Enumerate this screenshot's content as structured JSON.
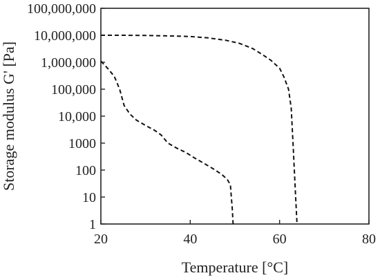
{
  "chart_data": {
    "type": "line",
    "title": "",
    "xlabel": "Temperature [°C]",
    "ylabel": "Storage modulus G' [Pa]",
    "xlim": [
      20,
      80
    ],
    "ylim": [
      1,
      100000000
    ],
    "y_scale": "log",
    "grid": false,
    "legend": "none",
    "x_ticks": [
      20,
      40,
      60,
      80
    ],
    "x_tick_labels": [
      "20",
      "40",
      "60",
      "80"
    ],
    "y_ticks": [
      1,
      10,
      100,
      1000,
      10000,
      100000,
      1000000,
      10000000,
      100000000
    ],
    "y_tick_labels": [
      "1",
      "10",
      "100",
      "1000",
      "10,000",
      "100,000",
      "1,000,000",
      "10,000,000",
      "100,000,000"
    ],
    "series": [
      {
        "line_style": "dashed",
        "color": "#111111",
        "points": [
          [
            20.0,
            1100000
          ],
          [
            21.5,
            600000
          ],
          [
            23.0,
            300000
          ],
          [
            24.2,
            100000
          ],
          [
            25.2,
            25000
          ],
          [
            26.5,
            12000
          ],
          [
            28.0,
            7000
          ],
          [
            30.0,
            4500
          ],
          [
            32.0,
            3000
          ],
          [
            33.5,
            2000
          ],
          [
            35.0,
            1000
          ],
          [
            37.0,
            650
          ],
          [
            39.0,
            450
          ],
          [
            41.0,
            280
          ],
          [
            43.0,
            180
          ],
          [
            45.0,
            115
          ],
          [
            47.0,
            70
          ],
          [
            48.3,
            45
          ],
          [
            49.0,
            28
          ],
          [
            49.2,
            10
          ],
          [
            49.4,
            4
          ],
          [
            49.6,
            1
          ]
        ]
      },
      {
        "line_style": "dashed",
        "color": "#111111",
        "points": [
          [
            20.0,
            10000000
          ],
          [
            25.0,
            10000000
          ],
          [
            30.0,
            9800000
          ],
          [
            35.0,
            9500000
          ],
          [
            40.0,
            9000000
          ],
          [
            44.0,
            8000000
          ],
          [
            48.0,
            6500000
          ],
          [
            51.0,
            5000000
          ],
          [
            54.0,
            3200000
          ],
          [
            56.0,
            2000000
          ],
          [
            58.0,
            1200000
          ],
          [
            60.0,
            600000
          ],
          [
            61.0,
            280000
          ],
          [
            62.0,
            100000
          ],
          [
            62.6,
            20000
          ],
          [
            63.0,
            1000
          ],
          [
            63.3,
            100
          ],
          [
            63.6,
            10
          ],
          [
            63.9,
            1
          ]
        ]
      }
    ]
  }
}
